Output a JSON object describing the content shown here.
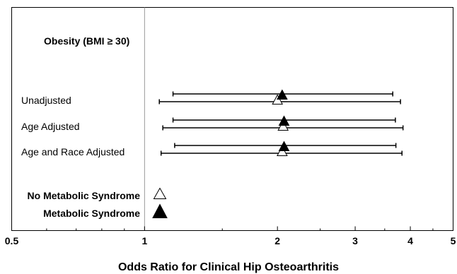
{
  "chart_data": {
    "type": "scatter",
    "subtype": "forest-plot",
    "title": "Obesity (BMI ≥ 30)",
    "xlabel": "Odds Ratio for Clinical Hip Osteoarthritis",
    "x_scale": "log",
    "xlim": [
      0.5,
      5
    ],
    "x_ticks": [
      "0.5",
      "1",
      "2",
      "3",
      "4",
      "5"
    ],
    "reference_line": 1,
    "grid": false,
    "categories": [
      "Unadjusted",
      "Age Adjusted",
      "Age and Race Adjusted"
    ],
    "series": [
      {
        "name": "Metabolic Syndrome",
        "marker": "filled-triangle",
        "color": "#000000",
        "values": [
          2.05,
          2.07,
          2.07
        ],
        "ci_low": [
          1.16,
          1.16,
          1.17
        ],
        "ci_high": [
          3.65,
          3.7,
          3.71
        ]
      },
      {
        "name": "No Metabolic Syndrome",
        "marker": "open-triangle",
        "color": "#ffffff",
        "values": [
          2.0,
          2.06,
          2.05
        ],
        "ci_low": [
          1.08,
          1.1,
          1.09
        ],
        "ci_high": [
          3.8,
          3.85,
          3.83
        ]
      }
    ],
    "legend": {
      "placement": "bottom-left",
      "entries": [
        "No Metabolic Syndrome",
        "Metabolic Syndrome"
      ]
    }
  }
}
